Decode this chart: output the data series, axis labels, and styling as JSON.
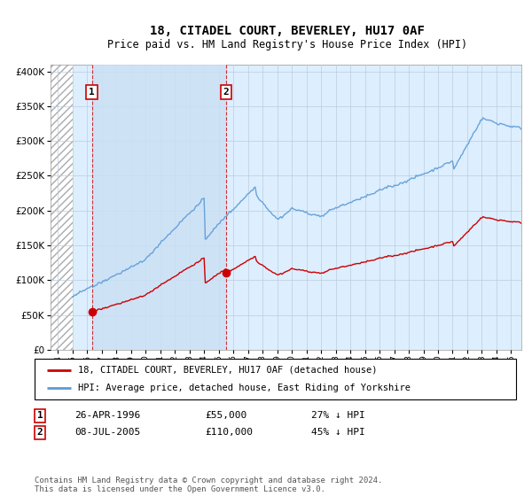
{
  "title_line1": "18, CITADEL COURT, BEVERLEY, HU17 0AF",
  "title_line2": "Price paid vs. HM Land Registry's House Price Index (HPI)",
  "legend_label1": "18, CITADEL COURT, BEVERLEY, HU17 0AF (detached house)",
  "legend_label2": "HPI: Average price, detached house, East Riding of Yorkshire",
  "sale1_year": 1996.32,
  "sale1_value": 55000,
  "sale2_year": 2005.52,
  "sale2_value": 110000,
  "annotation_row1": [
    "1",
    "26-APR-1996",
    "£55,000",
    "27% ↓ HPI"
  ],
  "annotation_row2": [
    "2",
    "08-JUL-2005",
    "£110,000",
    "45% ↓ HPI"
  ],
  "footnote": "Contains HM Land Registry data © Crown copyright and database right 2024.\nThis data is licensed under the Open Government Licence v3.0.",
  "hpi_color": "#5b9bd5",
  "sale_color": "#cc0000",
  "bg_plot": "#ddeeff",
  "bg_hatch": "#e8e8e8",
  "grid_color": "#bbccdd",
  "ylim_max": 410000,
  "xmin": 1993.5,
  "xmax": 2025.7,
  "yticks": [
    0,
    50000,
    100000,
    150000,
    200000,
    250000,
    300000,
    350000,
    400000
  ],
  "highlight_between_sales": true,
  "highlight_color": "#cce0f5"
}
